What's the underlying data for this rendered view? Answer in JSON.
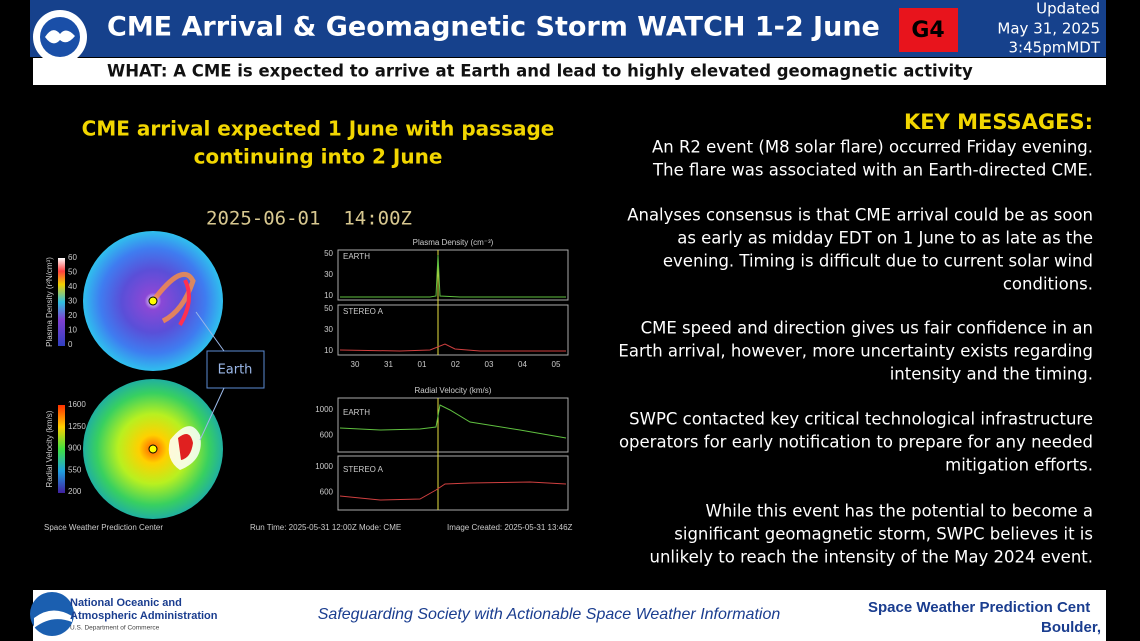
{
  "header": {
    "title": "CME Arrival & Geomagnetic Storm WATCH 1-2 June",
    "badge": "G4",
    "updated": [
      "Updated",
      "May 31, 2025",
      "3:45pmMDT"
    ]
  },
  "subtitle": "WHAT: A CME is expected to arrive at Earth and lead to highly elevated geomagnetic activity",
  "headline": [
    "CME arrival expected 1 June with passage",
    "continuing into 2 June"
  ],
  "model": {
    "timestamp": "2025-06-01  14:00Z",
    "earth_label": "Earth",
    "density_colorbar": {
      "label": "Plasma Density (r²N/cm³)",
      "ticks": [
        60,
        50,
        40,
        30,
        20,
        10,
        0
      ]
    },
    "velocity_colorbar": {
      "label": "Radial Velocity (km/s)",
      "ticks": [
        1600,
        1250,
        900,
        550,
        200
      ]
    },
    "density_plot": {
      "title": "Plasma Density (cm⁻³)",
      "panels": [
        {
          "name": "EARTH",
          "ticks": [
            50,
            30,
            10
          ]
        },
        {
          "name": "STEREO A",
          "ticks": [
            50,
            30,
            10
          ]
        }
      ],
      "dates": [
        "30",
        "31",
        "01",
        "02",
        "03",
        "04",
        "05"
      ]
    },
    "velocity_plot": {
      "title": "Radial Velocity (km/s)",
      "panels": [
        {
          "name": "EARTH",
          "ticks": [
            1000,
            600
          ]
        },
        {
          "name": "STEREO A",
          "ticks": [
            1000,
            600
          ]
        }
      ]
    },
    "footer": [
      "Space Weather Prediction Center",
      "Run Time: 2025-05-31 12:00Z  Mode: CME",
      "Image Created: 2025-05-31 13:46Z"
    ]
  },
  "key_messages": {
    "title": "KEY MESSAGES:",
    "items": [
      [
        "An R2 event (M8 solar flare) occurred Friday evening.",
        "The flare was associated with an Earth-directed CME."
      ],
      [
        "Analyses consensus is that CME arrival could be as soon",
        "as early as midday EDT on 1 June to as late as the",
        "evening. Timing is difficult due to current solar wind",
        "conditions."
      ],
      [
        "CME speed and direction gives us fair confidence in an",
        "Earth arrival, however, more uncertainty exists regarding",
        "intensity and the timing."
      ],
      [
        "SWPC contacted key critical technological infrastructure",
        "operators for early notification to prepare for any needed",
        "mitigation efforts."
      ],
      [
        "While this event has the potential to become a",
        "significant geomagnetic storm, SWPC believes it is",
        "unlikely to reach the intensity of the May 2024 event."
      ]
    ]
  },
  "footer": {
    "agency": [
      "National Oceanic and",
      "Atmospheric Administration",
      "U.S. Department of Commerce"
    ],
    "motto": "Safeguarding Society with Actionable Space Weather Information",
    "center": [
      "Space Weather Prediction Cent",
      "Boulder,"
    ]
  }
}
